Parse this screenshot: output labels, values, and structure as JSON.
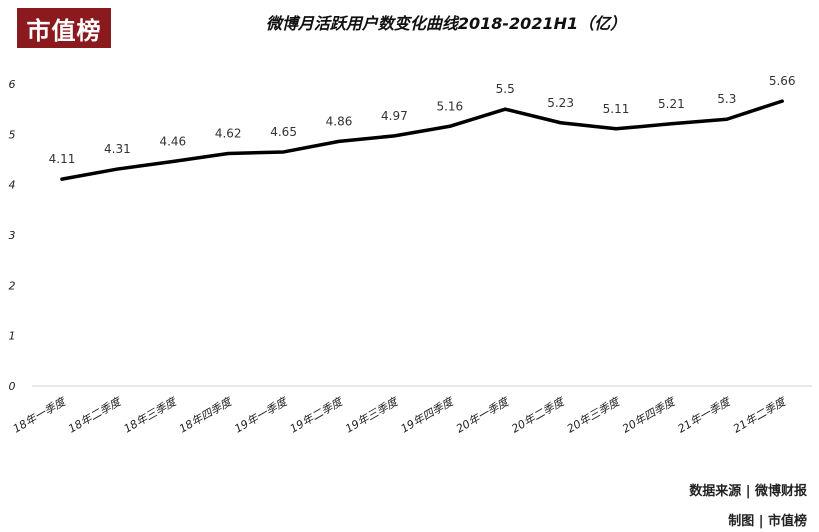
{
  "logo": {
    "text": "市值榜",
    "color": "#8b1a1f"
  },
  "title": "微博月活跃用户数变化曲线2018-2021H1（亿）",
  "footer": {
    "source": "数据来源 | 微博财报",
    "credit": "制图 | 市值榜"
  },
  "chart_data": {
    "type": "line",
    "title": "微博月活跃用户数变化曲线2018-2021H1（亿）",
    "xlabel": "",
    "ylabel": "",
    "categories": [
      "18年一季度",
      "18年二季度",
      "18年三季度",
      "18年四季度",
      "19年一季度",
      "19年二季度",
      "19年三季度",
      "19年四季度",
      "20年一季度",
      "20年二季度",
      "20年三季度",
      "20年四季度",
      "21年一季度",
      "21年二季度"
    ],
    "series": [
      {
        "values": [
          4.11,
          4.31,
          4.46,
          4.62,
          4.65,
          4.86,
          4.97,
          5.16,
          5.5,
          5.23,
          5.11,
          5.21,
          5.3,
          5.66
        ]
      }
    ],
    "ylim": [
      0,
      6
    ],
    "yticks": [
      0,
      1,
      2,
      3,
      4,
      5,
      6
    ],
    "grid": false,
    "line_color": "#000000"
  }
}
